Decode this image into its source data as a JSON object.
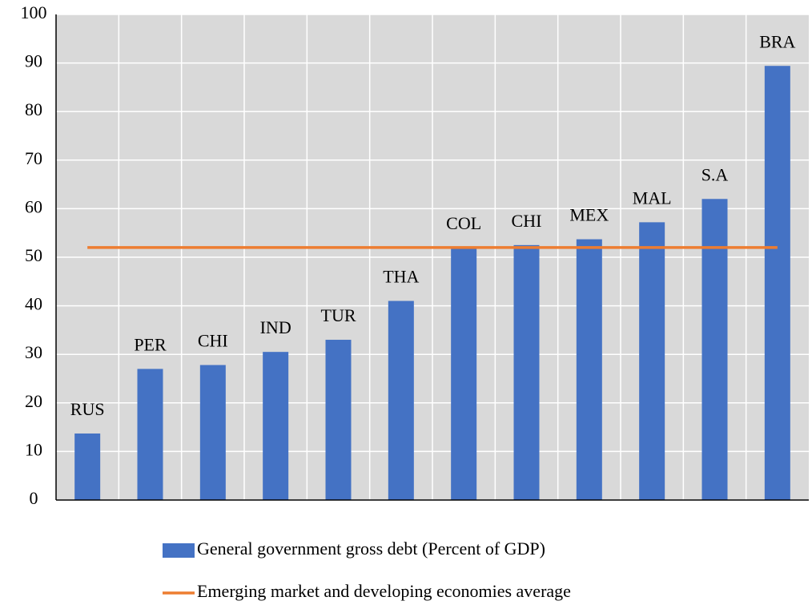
{
  "chart_data": {
    "type": "bar",
    "categories": [
      "RUS",
      "PER",
      "CHI",
      "IND",
      "TUR",
      "THA",
      "COL",
      "CHI",
      "MEX",
      "MAL",
      "S.A",
      "BRA"
    ],
    "series": [
      {
        "name": "General government gross debt (Percent of GDP)",
        "color": "#4472c4",
        "type": "bar",
        "values": [
          13.7,
          27,
          27.8,
          30.5,
          33,
          41,
          52,
          52.5,
          53.7,
          57.2,
          62,
          89.4
        ]
      },
      {
        "name": "Emerging market and developing economies average",
        "color": "#ed7d31",
        "type": "line",
        "values": [
          52,
          52,
          52,
          52,
          52,
          52,
          52,
          52,
          52,
          52,
          52,
          52
        ]
      }
    ],
    "ylim": [
      0,
      100
    ],
    "yticks": [
      0,
      10,
      20,
      30,
      40,
      50,
      60,
      70,
      80,
      90,
      100
    ],
    "grid": true
  }
}
